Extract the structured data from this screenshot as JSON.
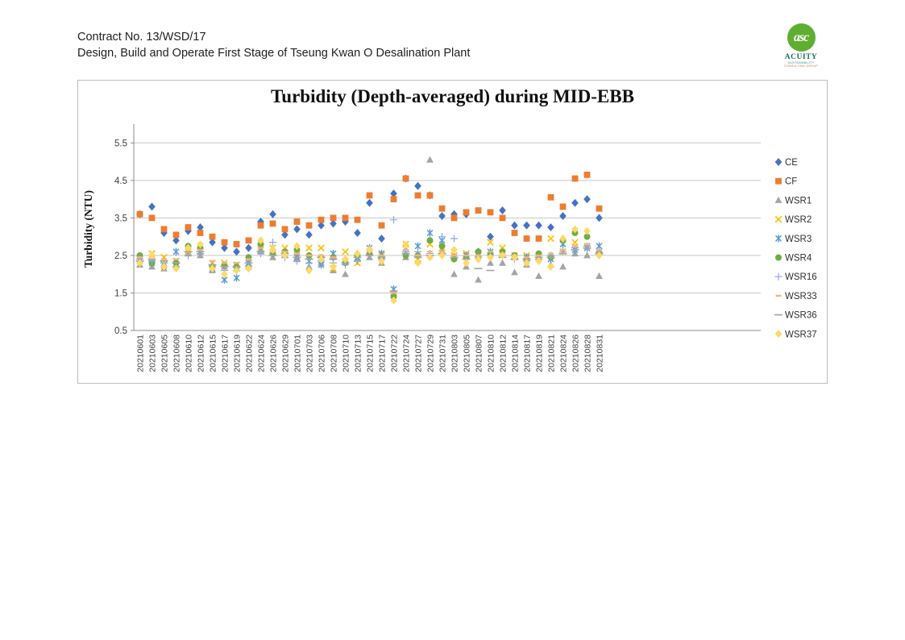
{
  "page": {
    "header_line1": "Contract No. 13/WSD/17",
    "header_line2": "Design, Build and Operate First Stage of Tseung Kwan O Desalination Plant"
  },
  "logo": {
    "monogram": "asc",
    "name": "ACUITY",
    "subline1": "SUSTAINABILITY",
    "subline2": "CONSULTING GROUP",
    "circle_color": "#5FAE32",
    "name_color": "#15735B"
  },
  "chart_data": {
    "type": "scatter",
    "title": "Turbidity (Depth-averaged) during MID-EBB",
    "xlabel": "",
    "ylabel": "Turbidity (NTU)",
    "ylim": [
      0.5,
      6.0
    ],
    "yticks": [
      "0.5",
      "1.5",
      "2.5",
      "3.5",
      "4.5",
      "5.5"
    ],
    "grid": true,
    "legend_position": "right",
    "axis_color": "#8E8E8E",
    "grid_color": "#C6C6C6",
    "tick_label_color": "#3F3F3F",
    "categories": [
      "20210601",
      "20210603",
      "20210605",
      "20210608",
      "20210610",
      "20210612",
      "20210615",
      "20210617",
      "20210619",
      "20210622",
      "20210624",
      "20210626",
      "20210629",
      "20210701",
      "20210703",
      "20210706",
      "20210708",
      "20210710",
      "20210713",
      "20210715",
      "20210717",
      "20210722",
      "20210724",
      "20210727",
      "20210729",
      "20210731",
      "20210803",
      "20210805",
      "20210807",
      "20210810",
      "20210812",
      "20210814",
      "20210817",
      "20210819",
      "20210821",
      "20210824",
      "20210826",
      "20210828",
      "20210831"
    ],
    "series": [
      {
        "name": "CE",
        "marker": "diamond",
        "color": "#4472C4",
        "values": [
          3.6,
          3.8,
          3.1,
          2.9,
          3.15,
          3.25,
          2.85,
          2.7,
          2.6,
          2.7,
          3.4,
          3.6,
          3.05,
          3.2,
          3.05,
          3.3,
          3.35,
          3.4,
          3.1,
          3.9,
          2.95,
          4.15,
          4.55,
          4.35,
          4.1,
          3.55,
          3.6,
          3.6,
          2.6,
          3.0,
          3.7,
          3.3,
          3.3,
          3.3,
          3.25,
          3.55,
          3.9,
          4.0,
          3.5
        ]
      },
      {
        "name": "CF",
        "marker": "square",
        "color": "#ED7D31",
        "values": [
          3.6,
          3.5,
          3.2,
          3.05,
          3.25,
          3.1,
          3.0,
          2.85,
          2.8,
          2.9,
          3.3,
          3.35,
          3.2,
          3.4,
          3.3,
          3.45,
          3.5,
          3.5,
          3.45,
          4.1,
          3.3,
          4.0,
          4.55,
          4.1,
          4.1,
          3.75,
          3.5,
          3.65,
          3.7,
          3.65,
          3.5,
          3.1,
          2.95,
          2.95,
          4.05,
          3.8,
          4.55,
          4.65,
          3.75
        ]
      },
      {
        "name": "WSR1",
        "marker": "triangle",
        "color": "#A5A5A5",
        "values": [
          2.25,
          2.2,
          2.15,
          2.25,
          2.55,
          2.5,
          2.1,
          2.2,
          2.15,
          2.2,
          2.6,
          2.45,
          2.5,
          2.4,
          2.2,
          2.3,
          2.1,
          2.0,
          2.4,
          2.45,
          2.3,
          1.5,
          2.45,
          2.35,
          5.05,
          2.6,
          2.0,
          2.2,
          1.85,
          2.3,
          2.3,
          2.05,
          2.25,
          1.95,
          2.25,
          2.2,
          2.55,
          2.5,
          1.95
        ]
      },
      {
        "name": "WSR2",
        "marker": "x",
        "color": "#FFC000",
        "values": [
          2.4,
          2.55,
          2.45,
          2.35,
          2.6,
          2.6,
          2.3,
          2.3,
          2.25,
          2.3,
          2.7,
          2.7,
          2.7,
          2.5,
          2.7,
          2.7,
          2.15,
          2.6,
          2.3,
          2.6,
          2.5,
          1.45,
          2.8,
          2.4,
          2.8,
          2.7,
          2.5,
          2.55,
          2.55,
          2.85,
          2.7,
          2.5,
          2.5,
          2.45,
          2.95,
          2.6,
          2.85,
          2.75,
          2.6
        ]
      },
      {
        "name": "WSR3",
        "marker": "star",
        "color": "#5B9BD5",
        "values": [
          2.35,
          2.3,
          2.25,
          2.6,
          2.65,
          2.6,
          2.15,
          1.85,
          1.9,
          2.3,
          2.65,
          2.6,
          2.55,
          2.45,
          2.35,
          2.25,
          2.55,
          2.35,
          2.45,
          2.7,
          2.55,
          1.6,
          2.7,
          2.75,
          3.1,
          2.9,
          2.45,
          2.5,
          2.5,
          2.6,
          2.55,
          2.45,
          2.45,
          2.5,
          2.4,
          2.8,
          2.65,
          2.7,
          2.75
        ]
      },
      {
        "name": "WSR4",
        "marker": "circle",
        "color": "#70AD47",
        "values": [
          2.5,
          2.3,
          2.2,
          2.3,
          2.75,
          2.7,
          2.2,
          2.25,
          2.2,
          2.45,
          2.8,
          2.55,
          2.6,
          2.65,
          2.5,
          2.45,
          2.45,
          2.3,
          2.5,
          2.55,
          2.45,
          1.4,
          2.5,
          2.5,
          2.9,
          2.75,
          2.4,
          2.45,
          2.6,
          2.55,
          2.6,
          2.5,
          2.4,
          2.55,
          2.45,
          2.9,
          3.1,
          3.0,
          2.55
        ]
      },
      {
        "name": "WSR16",
        "marker": "plus",
        "color": "#8EA9DB",
        "values": [
          2.4,
          2.35,
          2.3,
          2.2,
          2.5,
          2.55,
          2.25,
          2.1,
          2.1,
          2.2,
          2.55,
          2.85,
          2.45,
          2.35,
          2.3,
          2.35,
          2.3,
          2.25,
          2.35,
          2.5,
          2.4,
          3.45,
          2.6,
          2.6,
          2.55,
          3.0,
          2.95,
          2.4,
          2.45,
          2.5,
          2.5,
          2.4,
          2.35,
          2.4,
          2.5,
          2.6,
          2.7,
          2.75,
          2.6
        ]
      },
      {
        "name": "WSR33",
        "marker": "dash-short",
        "color": "#F4B183",
        "values": [
          2.45,
          2.45,
          2.4,
          2.4,
          2.7,
          2.65,
          2.35,
          2.3,
          2.3,
          2.4,
          2.7,
          2.6,
          2.6,
          2.55,
          2.5,
          2.5,
          2.45,
          2.4,
          2.55,
          2.6,
          2.5,
          1.5,
          2.65,
          2.5,
          2.6,
          2.6,
          2.5,
          2.5,
          2.5,
          2.6,
          2.55,
          2.5,
          2.45,
          2.5,
          2.55,
          2.65,
          2.75,
          2.8,
          2.65
        ]
      },
      {
        "name": "WSR36",
        "marker": "dash",
        "color": "#A6A6A6",
        "values": [
          2.35,
          2.4,
          2.35,
          2.3,
          2.6,
          2.6,
          2.25,
          2.2,
          2.2,
          2.3,
          2.6,
          2.5,
          2.55,
          2.45,
          2.4,
          2.45,
          2.4,
          2.3,
          2.45,
          2.5,
          2.45,
          1.55,
          2.55,
          2.45,
          2.5,
          2.55,
          2.45,
          2.4,
          2.15,
          2.1,
          2.45,
          2.4,
          2.4,
          2.45,
          2.45,
          2.55,
          2.65,
          2.7,
          2.55
        ]
      },
      {
        "name": "WSR37",
        "marker": "diamond",
        "color": "#FFD966",
        "values": [
          2.3,
          2.5,
          2.2,
          2.15,
          2.7,
          2.8,
          2.15,
          2.0,
          2.1,
          2.15,
          2.9,
          2.65,
          2.5,
          2.75,
          2.1,
          2.4,
          2.2,
          2.4,
          2.55,
          2.65,
          2.35,
          1.3,
          2.78,
          2.3,
          2.45,
          2.5,
          2.65,
          2.3,
          2.4,
          2.45,
          2.5,
          2.45,
          2.3,
          2.35,
          2.2,
          2.95,
          3.2,
          3.15,
          2.5
        ]
      }
    ]
  }
}
